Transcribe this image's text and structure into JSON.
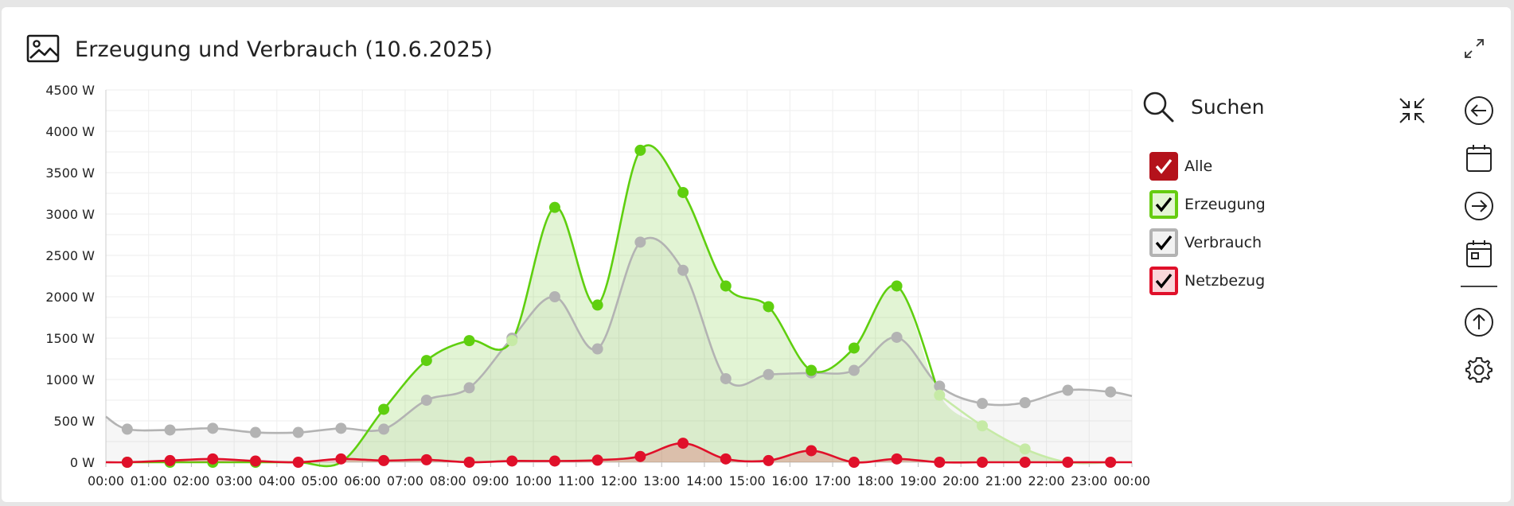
{
  "header": {
    "title": "Erzeugung und Verbrauch (10.6.2025)"
  },
  "legend": {
    "search_label": "Suchen",
    "items": [
      {
        "label": "Alle",
        "border": "#b4121b",
        "fill": "#b4121b",
        "check": "#ffffff"
      },
      {
        "label": "Erzeugung",
        "border": "#66cc11",
        "fill": "#e4f5d4",
        "check": "#000000"
      },
      {
        "label": "Verbrauch",
        "border": "#b3b3b3",
        "fill": "#f2f2f2",
        "check": "#000000"
      },
      {
        "label": "Netzbezug",
        "border": "#e0102a",
        "fill": "#f9d6da",
        "check": "#000000"
      }
    ]
  },
  "toolbar": {
    "buttons": [
      "arrow-left-icon",
      "calendar-icon",
      "arrow-right-icon",
      "calendar-day-icon",
      "arrow-up-icon",
      "gear-icon"
    ]
  },
  "chart_data": {
    "type": "area",
    "title": "Erzeugung und Verbrauch (10.6.2025)",
    "y_ticks": [
      "0 W",
      "500 W",
      "1000 W",
      "1500 W",
      "2000 W",
      "2500 W",
      "3000 W",
      "3500 W",
      "4000 W",
      "4500 W"
    ],
    "x_ticks": [
      "00:00",
      "01:00",
      "02:00",
      "03:00",
      "04:00",
      "05:00",
      "06:00",
      "07:00",
      "08:00",
      "09:00",
      "10:00",
      "11:00",
      "12:00",
      "13:00",
      "14:00",
      "15:00",
      "16:00",
      "17:00",
      "18:00",
      "19:00",
      "20:00",
      "21:00",
      "22:00",
      "23:00",
      "00:00"
    ],
    "ylim": [
      0,
      4500
    ],
    "xlim": [
      0,
      24
    ],
    "grid": true,
    "legend_position": "right",
    "series": [
      {
        "name": "Erzeugung",
        "color": "#5fcf0f",
        "fill": "rgba(110,200,40,0.20)",
        "x": [
          0.5,
          1.5,
          2.5,
          3.5,
          4.5,
          5.5,
          6.5,
          7.5,
          8.5,
          9.5,
          10.5,
          11.5,
          12.5,
          13.5,
          14.5,
          15.5,
          16.5,
          17.5,
          18.5,
          19.5,
          20.5,
          21.5,
          22.5,
          23.5
        ],
        "values": [
          0,
          0,
          0,
          0,
          0,
          0,
          640,
          1230,
          1470,
          1470,
          3080,
          1900,
          3770,
          3260,
          2130,
          1880,
          1110,
          1380,
          2130,
          810,
          440,
          160,
          0,
          0
        ],
        "marker_x": [
          0.5,
          1.5,
          2.5,
          3.5,
          6.5,
          7.5,
          8.5,
          10.5,
          11.5,
          12.5,
          13.5,
          14.5,
          15.5,
          16.5,
          17.5,
          18.5
        ],
        "marker_y": [
          0,
          0,
          0,
          0,
          640,
          1230,
          1470,
          3080,
          1900,
          3770,
          3260,
          2130,
          1880,
          1110,
          1380,
          2130
        ],
        "faded_marker_x": [
          9.5,
          19.5,
          20.5,
          21.5
        ],
        "faded_marker_y": [
          1470,
          810,
          440,
          160
        ]
      },
      {
        "name": "Verbrauch",
        "color": "#b3b3b3",
        "fill": "rgba(170,170,170,0.10)",
        "x": [
          0.5,
          1.5,
          2.5,
          3.5,
          4.5,
          5.5,
          6.5,
          7.5,
          8.5,
          9.5,
          10.5,
          11.5,
          12.5,
          13.5,
          14.5,
          15.5,
          16.5,
          17.5,
          18.5,
          19.5,
          20.5,
          21.5,
          22.5,
          23.5
        ],
        "values": [
          400,
          390,
          410,
          360,
          360,
          410,
          400,
          750,
          900,
          1500,
          2000,
          1370,
          2660,
          2320,
          1010,
          1060,
          1080,
          1110,
          1510,
          920,
          710,
          720,
          870,
          850
        ],
        "start_value": 550,
        "end_value": 800
      },
      {
        "name": "Netzbezug",
        "color": "#e0102a",
        "fill": "rgba(224,16,42,0.20)",
        "x": [
          0.5,
          1.5,
          2.5,
          3.5,
          4.5,
          5.5,
          6.5,
          7.5,
          8.5,
          9.5,
          10.5,
          11.5,
          12.5,
          13.5,
          14.5,
          15.5,
          16.5,
          17.5,
          18.5,
          19.5,
          20.5,
          21.5,
          22.5,
          23.5
        ],
        "values": [
          0,
          20,
          40,
          15,
          0,
          40,
          20,
          30,
          0,
          15,
          15,
          25,
          70,
          230,
          40,
          20,
          140,
          0,
          40,
          0,
          0,
          0,
          0,
          0
        ]
      }
    ]
  }
}
